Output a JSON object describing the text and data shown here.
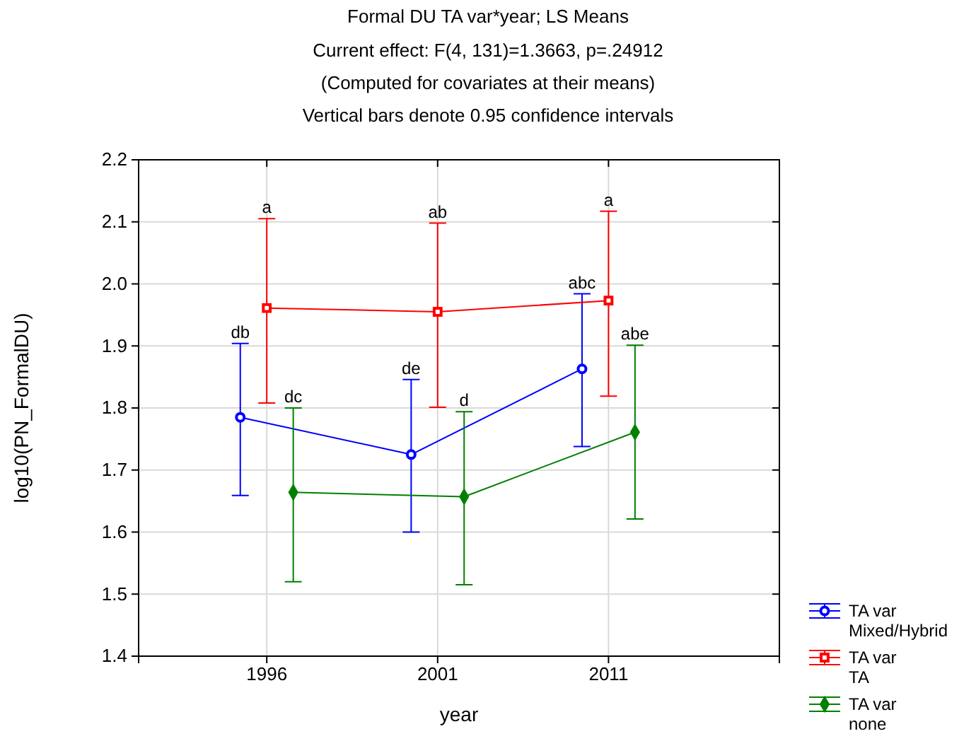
{
  "chart_data": {
    "type": "line",
    "title": "Formal DU TA var*year; LS Means",
    "subtitle": "Current effect: F(4, 131)=1.3663, p=.24912\n(Computed for covariates at their means)\nVertical bars denote 0.95 confidence intervals",
    "xlabel": "year",
    "ylabel": "log10(PN_FormalDU)",
    "categories": [
      "1996",
      "2001",
      "2011"
    ],
    "ylim": [
      1.4,
      2.2
    ],
    "yticks": [
      1.4,
      1.5,
      1.6,
      1.7,
      1.8,
      1.9,
      {
        "value": 2.0,
        "label": "2.0"
      },
      2.1,
      2.2
    ],
    "grid": true,
    "legend": "bottom right",
    "series": [
      {
        "name": "TA var Mixed/Hybrid",
        "color": "#0000ff",
        "marker": "circle",
        "values": [
          1.785,
          1.725,
          1.863
        ],
        "errors": [
          [
            1.659,
            1.904
          ],
          [
            1.6,
            1.846
          ],
          [
            1.738,
            1.984
          ]
        ]
      },
      {
        "name": "TA var TA",
        "color": "#ff0000",
        "marker": "square",
        "values": [
          1.961,
          1.955,
          1.973
        ],
        "errors": [
          [
            1.808,
            2.105
          ],
          [
            1.801,
            2.098
          ],
          [
            1.819,
            2.117
          ]
        ]
      },
      {
        "name": "TA var none",
        "color": "#008000",
        "marker": "diamond",
        "values": [
          1.664,
          1.657,
          1.761
        ],
        "errors": [
          [
            1.52,
            1.8
          ],
          [
            1.515,
            1.794
          ],
          [
            1.621,
            1.901
          ]
        ]
      }
    ],
    "annotations": [
      {
        "text": "db",
        "x": "1996",
        "y": 1.904
      },
      {
        "text": "de",
        "x": "2001",
        "y": 1.846
      },
      {
        "text": "abc",
        "x": "2011",
        "y": 1.984
      },
      {
        "text": "a",
        "x": "1996",
        "y": 2.105
      },
      {
        "text": "ab",
        "x": "2001",
        "y": 2.098
      },
      {
        "text": "a",
        "x": "2011",
        "y": 2.117
      },
      {
        "text": "dc",
        "x": "1996",
        "y": 1.8
      },
      {
        "text": "d",
        "x": "2001",
        "y": 1.794
      },
      {
        "text": "abe",
        "x": "2011",
        "y": 1.901
      }
    ]
  }
}
